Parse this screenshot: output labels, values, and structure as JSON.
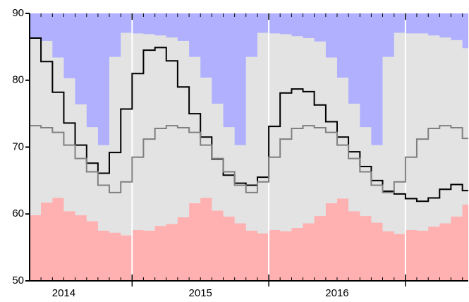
{
  "chart_data": {
    "type": "line",
    "x": [
      2014.25,
      2014.333,
      2014.417,
      2014.5,
      2014.583,
      2014.667,
      2014.75,
      2014.833,
      2014.917,
      2015,
      2015.083,
      2015.167,
      2015.25,
      2015.333,
      2015.417,
      2015.5,
      2015.583,
      2015.667,
      2015.75,
      2015.833,
      2015.917,
      2016,
      2016.083,
      2016.167,
      2016.25,
      2016.333,
      2016.417,
      2016.5,
      2016.583,
      2016.667,
      2016.75,
      2016.833,
      2016.917,
      2017,
      2017.083,
      2017.167,
      2017.25,
      2017.333,
      2017.417
    ],
    "series": [
      {
        "color": "#ffb0b0",
        "fill": "below",
        "values": [
          59.8,
          61.7,
          62.4,
          60.4,
          59.8,
          58.9,
          57.5,
          57.2,
          56.8,
          57.6,
          57.5,
          58.2,
          58.5,
          59.5,
          61.6,
          62.4,
          60.5,
          59.6,
          58.6,
          57.5,
          57.1,
          57.6,
          57.4,
          57.9,
          58.6,
          59.7,
          61.6,
          62.3,
          60.4,
          59.7,
          58.7,
          57.4,
          57.0,
          57.6,
          57.5,
          58.1,
          58.6,
          59.6,
          61.4
        ]
      },
      {
        "color": "#b0b0ff",
        "fill": "above",
        "values": [
          86.3,
          85.9,
          83.4,
          80.3,
          76.4,
          73.0,
          70.3,
          83.5,
          87.1,
          87.0,
          86.9,
          86.7,
          86.4,
          85.9,
          83.5,
          80.4,
          76.5,
          73.0,
          70.3,
          83.5,
          87.1,
          87.0,
          86.9,
          86.6,
          86.3,
          85.8,
          83.4,
          80.4,
          76.5,
          73.0,
          70.3,
          83.5,
          87.1,
          87.0,
          87.0,
          86.7,
          86.4,
          86.0,
          84.8
        ]
      },
      {
        "color": "#000000",
        "width": 2,
        "values": [
          86.3,
          82.8,
          78.2,
          73.6,
          70.3,
          67.6,
          66.1,
          69.2,
          75.7,
          81.0,
          84.5,
          84.9,
          82.9,
          79.0,
          75.0,
          71.5,
          68.2,
          65.8,
          64.6,
          64.3,
          65.5,
          73.1,
          78.1,
          78.7,
          78.3,
          76.3,
          73.8,
          71.5,
          69.3,
          67.1,
          65.0,
          63.4,
          63.0,
          62.3,
          61.9,
          62.4,
          63.7,
          64.4,
          63.5
        ]
      },
      {
        "color": "#808080",
        "width": 2,
        "values": [
          73.2,
          72.9,
          72.2,
          70.3,
          68.3,
          66.3,
          64.3,
          63.2,
          64.8,
          68.5,
          71.2,
          72.8,
          73.2,
          72.9,
          72.2,
          70.3,
          68.3,
          66.3,
          64.3,
          63.2,
          64.8,
          68.5,
          71.2,
          72.8,
          73.2,
          72.9,
          72.2,
          70.3,
          68.3,
          66.3,
          64.3,
          63.2,
          64.8,
          68.5,
          71.2,
          72.8,
          73.2,
          72.9,
          71.3
        ]
      }
    ],
    "band_color": "#e3e3e3",
    "xlim": [
      2014.25,
      2017.46
    ],
    "ylim": [
      50,
      90
    ],
    "yticks": [
      50,
      60,
      70,
      80,
      90
    ],
    "xticks": [
      {
        "value": 2014.5,
        "label": "2014"
      },
      {
        "value": 2015.5,
        "label": "2015"
      },
      {
        "value": 2016.5,
        "label": "2016"
      }
    ],
    "vlines": [
      2015,
      2016,
      2017
    ]
  }
}
